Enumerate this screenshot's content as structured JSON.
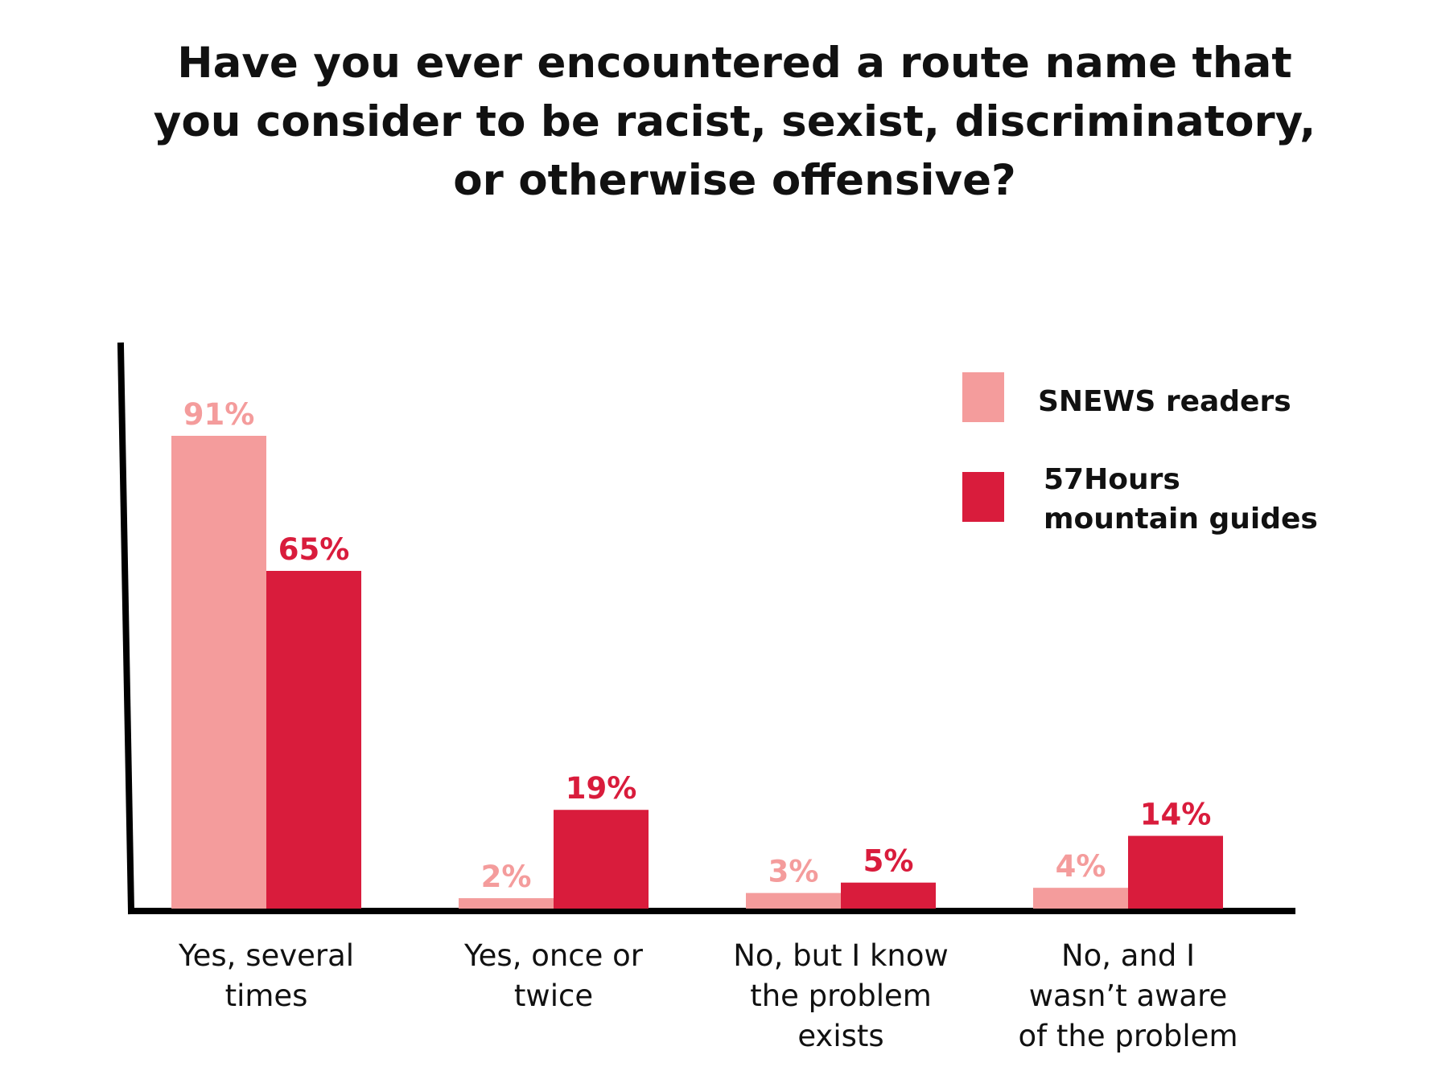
{
  "chart_data": {
    "type": "bar",
    "title_lines": [
      "Have you ever encountered a route name that",
      "you consider to be racist, sexist, discriminatory,",
      "or otherwise offensive?"
    ],
    "categories": [
      [
        "Yes, several",
        "times"
      ],
      [
        "Yes, once or",
        "twice"
      ],
      [
        "No, but I know",
        "the problem",
        "exists"
      ],
      [
        "No, and I",
        "wasn’t aware",
        "of the problem"
      ]
    ],
    "series": [
      {
        "name": "SNEWS readers",
        "name_lines": [
          "SNEWS readers"
        ],
        "color": "#f49c9c",
        "values": [
          91,
          2,
          3,
          4
        ],
        "labels": [
          "91%",
          "2%",
          "3%",
          "4%"
        ]
      },
      {
        "name": "57Hours mountain guides",
        "name_lines": [
          "57Hours",
          "mountain guides"
        ],
        "color": "#d91c3c",
        "values": [
          65,
          19,
          5,
          14
        ],
        "labels": [
          "65%",
          "19%",
          "5%",
          "14%"
        ]
      }
    ],
    "ylim": [
      0,
      100
    ],
    "grid": false,
    "legend_position": "top-right",
    "axis_color": "#000000"
  }
}
